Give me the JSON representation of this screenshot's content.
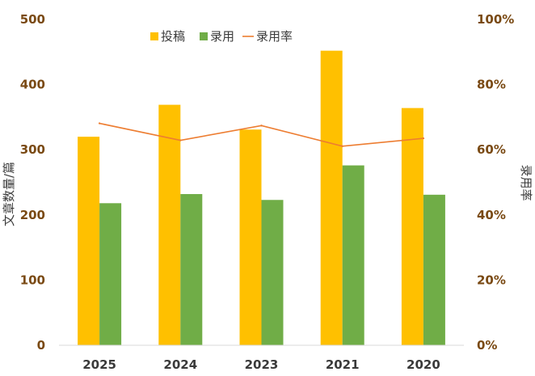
{
  "chart_data": {
    "type": "bar",
    "categories": [
      "2025",
      "2024",
      "2023",
      "2021",
      "2020"
    ],
    "series": [
      {
        "name": "投稿",
        "type": "bar",
        "axis": "left",
        "color": "#FFC000",
        "values": [
          320,
          369,
          331,
          452,
          364
        ]
      },
      {
        "name": "录用",
        "type": "bar",
        "axis": "left",
        "color": "#70AD47",
        "values": [
          218,
          232,
          223,
          276,
          231
        ]
      },
      {
        "name": "录用率",
        "type": "line",
        "axis": "right",
        "color": "#ED7D31",
        "values": [
          68.1,
          62.9,
          67.4,
          61.1,
          63.5
        ]
      }
    ],
    "ylabel": "文章数量/篇",
    "y2label": "录用率",
    "ylim": [
      0,
      500
    ],
    "y2lim": [
      0,
      100
    ],
    "yticks": [
      "0",
      "100",
      "200",
      "300",
      "400",
      "500"
    ],
    "y2ticks": [
      "0%",
      "20%",
      "40%",
      "60%",
      "80%",
      "100%"
    ],
    "grid": false,
    "legend": "top-center"
  }
}
